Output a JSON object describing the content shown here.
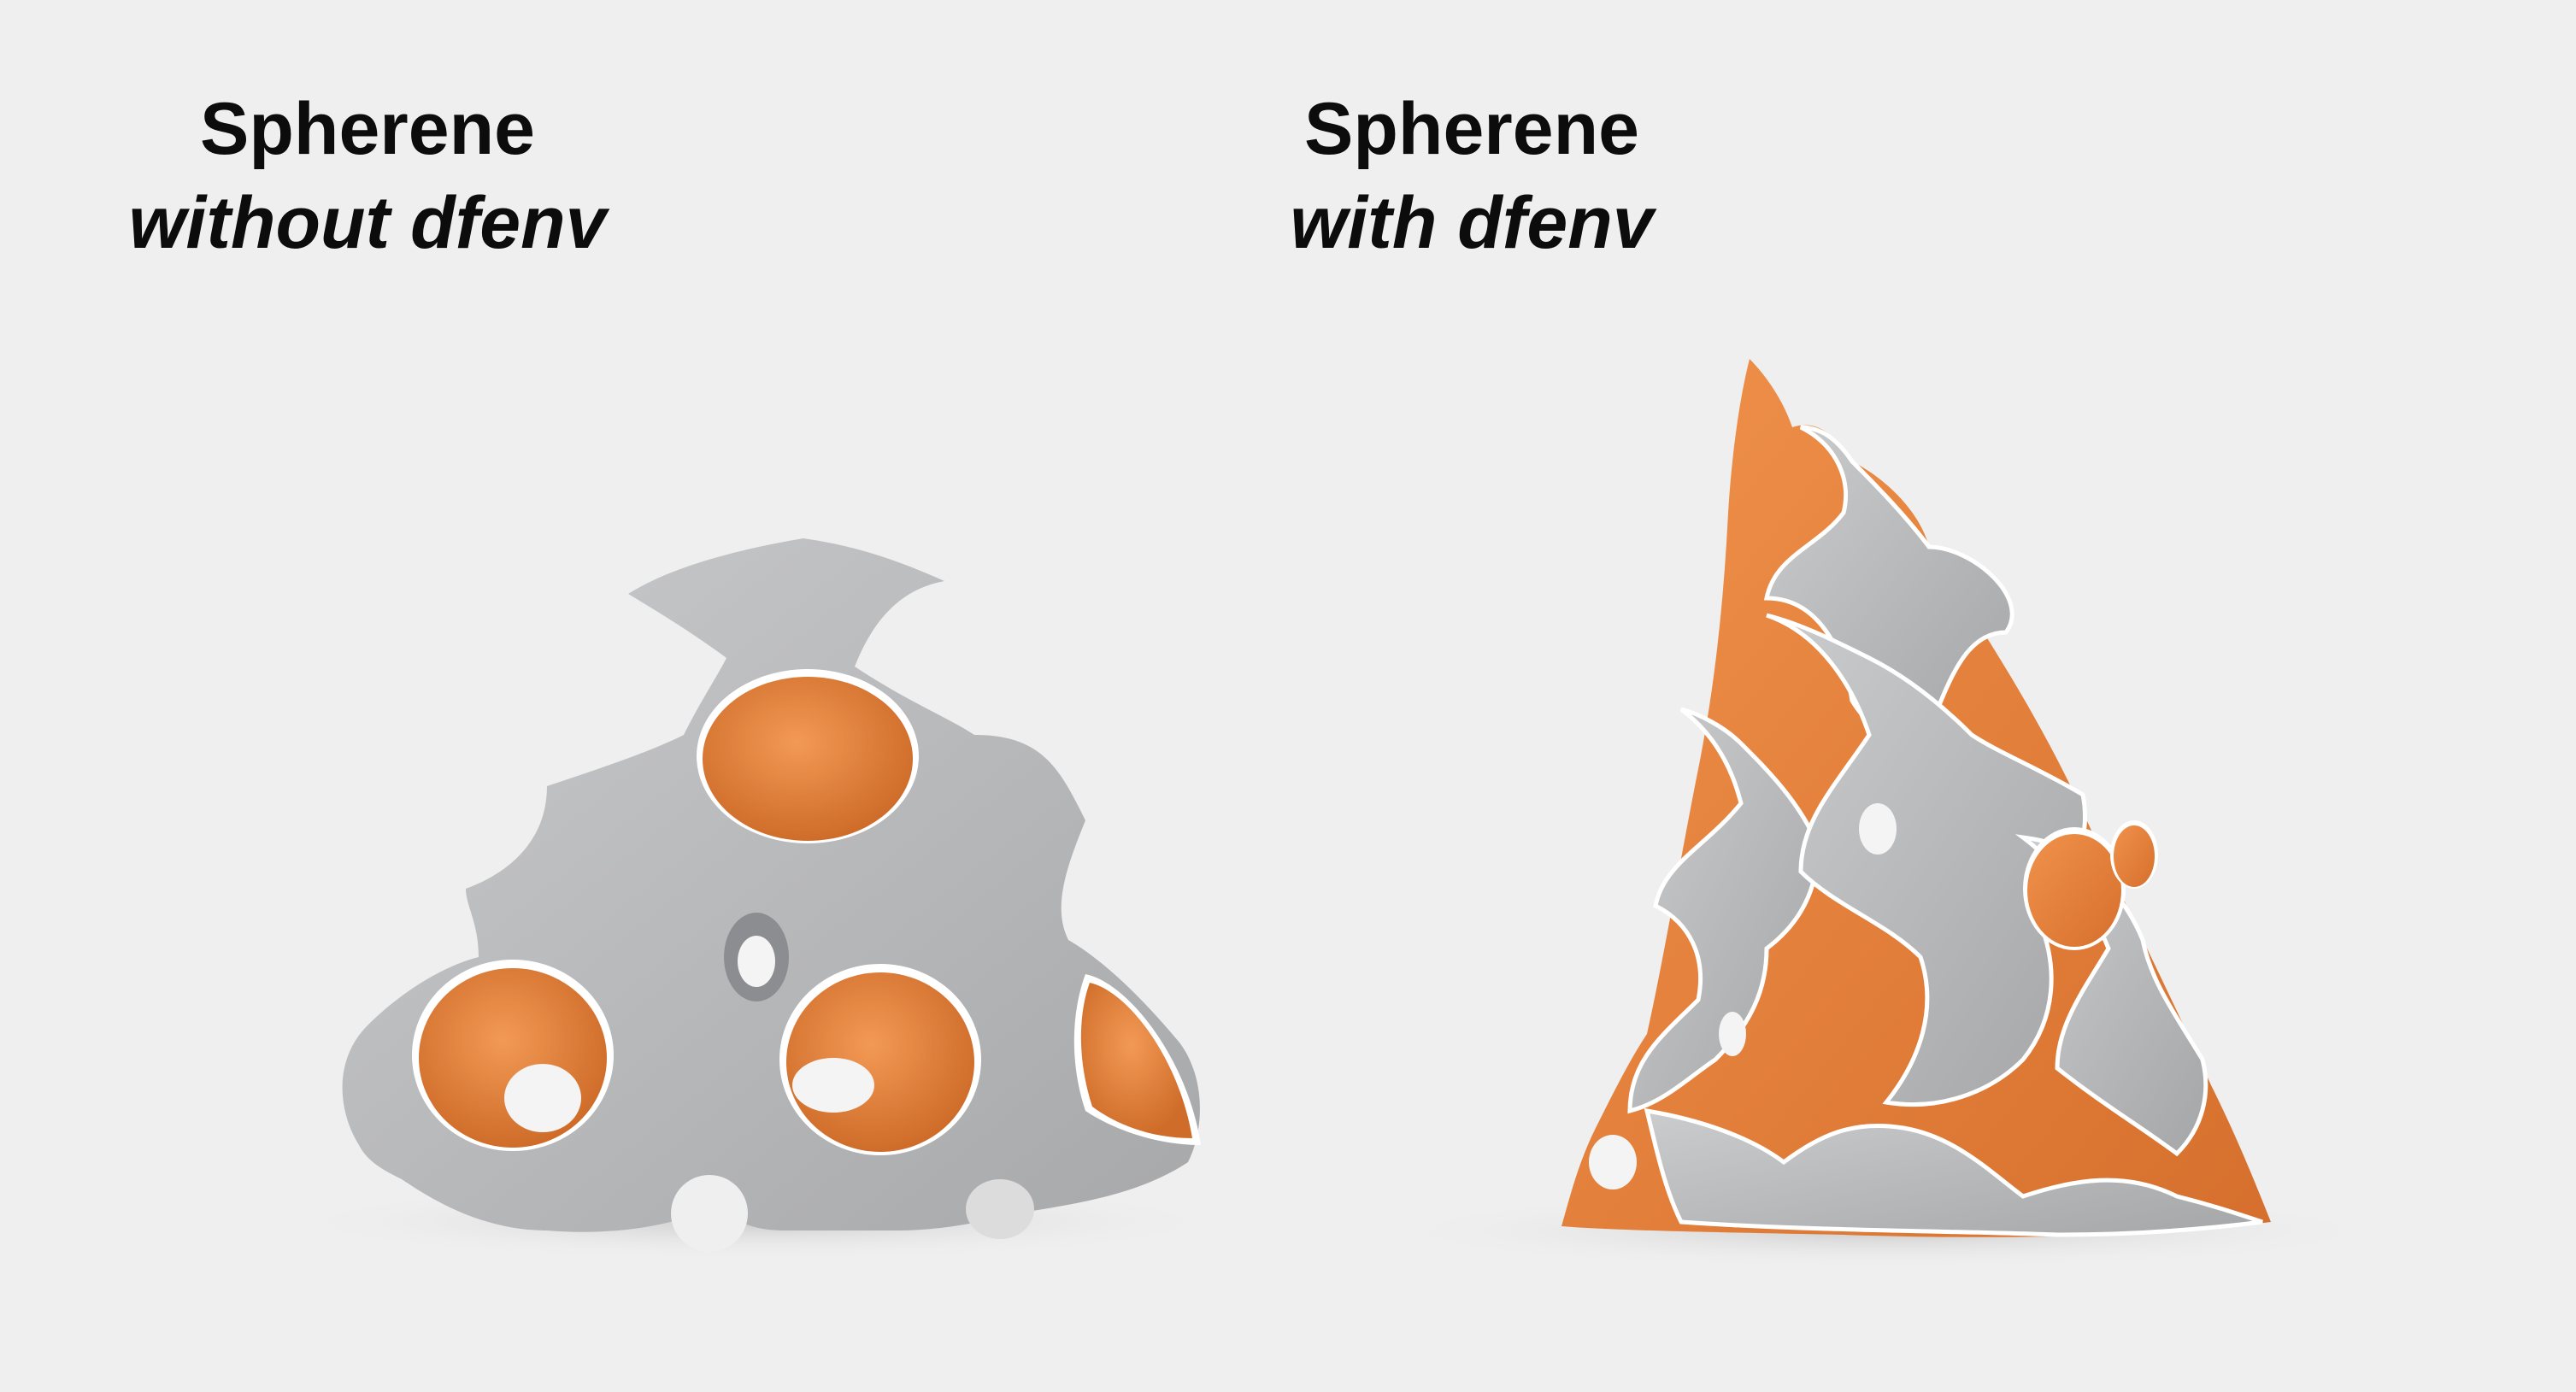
{
  "panels": [
    {
      "title": "Spherene",
      "subtitle": "without dfenv",
      "colors": {
        "surface": "#b9babc",
        "inner": "#e07f3c",
        "edge": "#ffffff"
      }
    },
    {
      "title": "Spherene",
      "subtitle": "with dfenv",
      "colors": {
        "surface": "#b9babc",
        "inner": "#e07f3c",
        "edge": "#ffffff"
      }
    }
  ],
  "background": "#efefef"
}
